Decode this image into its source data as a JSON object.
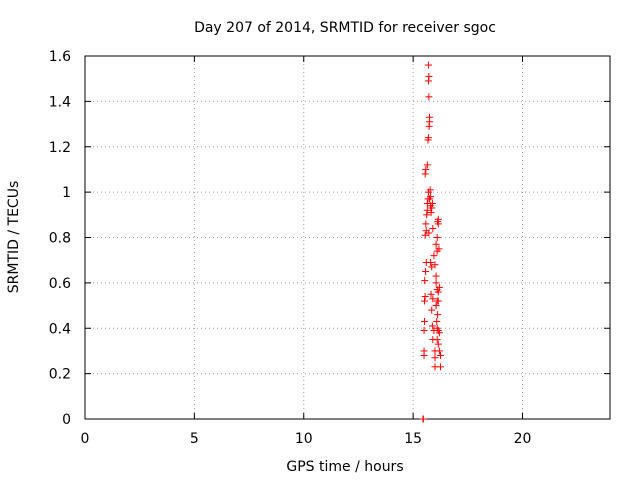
{
  "chart_data": {
    "type": "scatter",
    "title": "Day 207 of 2014, SRMTID for receiver sgoc",
    "xlabel": "GPS time / hours",
    "ylabel": "SRMTID / TECUs",
    "xlim": [
      0,
      24
    ],
    "ylim": [
      0,
      1.6
    ],
    "xticks": [
      "0",
      "5",
      "10",
      "15",
      "20"
    ],
    "xtick_values": [
      0,
      5,
      10,
      15,
      20
    ],
    "yticks": [
      "0",
      "0.2",
      "0.4",
      "0.6",
      "0.8",
      "1",
      "1.2",
      "1.4",
      "1.6"
    ],
    "ytick_values": [
      0,
      0.2,
      0.4,
      0.6,
      0.8,
      1.0,
      1.2,
      1.4,
      1.6
    ],
    "grid": true,
    "marker": "plus",
    "color": "#ff0000",
    "series": [
      {
        "points": [
          [
            15.45,
            0.0
          ],
          [
            15.47,
            0.0
          ],
          [
            15.5,
            0.28
          ],
          [
            15.5,
            0.3
          ],
          [
            15.5,
            0.39
          ],
          [
            15.52,
            0.43
          ],
          [
            15.52,
            0.52
          ],
          [
            15.55,
            0.54
          ],
          [
            15.53,
            0.61
          ],
          [
            15.57,
            0.65
          ],
          [
            15.6,
            0.69
          ],
          [
            15.55,
            0.81
          ],
          [
            15.6,
            0.83
          ],
          [
            15.58,
            0.86
          ],
          [
            15.62,
            0.9
          ],
          [
            15.65,
            0.92
          ],
          [
            15.65,
            0.95
          ],
          [
            15.68,
            0.97
          ],
          [
            15.7,
            1.0
          ],
          [
            15.55,
            1.08
          ],
          [
            15.58,
            1.1
          ],
          [
            15.65,
            1.12
          ],
          [
            15.68,
            1.23
          ],
          [
            15.7,
            1.24
          ],
          [
            15.73,
            1.29
          ],
          [
            15.75,
            1.31
          ],
          [
            15.75,
            1.33
          ],
          [
            15.72,
            1.42
          ],
          [
            15.7,
            1.49
          ],
          [
            15.72,
            1.51
          ],
          [
            15.7,
            1.56
          ],
          [
            15.78,
            1.01
          ],
          [
            15.8,
            0.98
          ],
          [
            15.8,
            0.94
          ],
          [
            15.82,
            0.91
          ],
          [
            15.85,
            0.93
          ],
          [
            15.88,
            0.95
          ],
          [
            15.8,
            0.69
          ],
          [
            15.85,
            0.67
          ],
          [
            15.82,
            0.55
          ],
          [
            15.9,
            0.53
          ],
          [
            15.85,
            0.48
          ],
          [
            15.88,
            0.41
          ],
          [
            15.95,
            0.39
          ],
          [
            15.9,
            0.35
          ],
          [
            16.0,
            0.3
          ],
          [
            16.0,
            0.27
          ],
          [
            16.0,
            0.23
          ],
          [
            16.05,
            0.77
          ],
          [
            16.1,
            0.74
          ],
          [
            16.1,
            0.8
          ],
          [
            16.12,
            0.87
          ],
          [
            16.15,
            0.88
          ],
          [
            16.15,
            0.86
          ],
          [
            16.18,
            0.75
          ],
          [
            16.05,
            0.63
          ],
          [
            16.1,
            0.57
          ],
          [
            16.15,
            0.56
          ],
          [
            16.1,
            0.52
          ],
          [
            16.15,
            0.52
          ],
          [
            16.2,
            0.58
          ],
          [
            16.12,
            0.46
          ],
          [
            16.08,
            0.43
          ],
          [
            16.1,
            0.4
          ],
          [
            16.15,
            0.39
          ],
          [
            16.2,
            0.38
          ],
          [
            16.1,
            0.35
          ],
          [
            16.15,
            0.33
          ],
          [
            16.2,
            0.3
          ],
          [
            16.25,
            0.28
          ],
          [
            16.25,
            0.23
          ],
          [
            16.05,
            0.5
          ],
          [
            16.05,
            0.6
          ],
          [
            16.0,
            0.68
          ],
          [
            15.95,
            0.72
          ],
          [
            15.9,
            0.84
          ],
          [
            15.75,
            0.97
          ],
          [
            15.72,
            0.82
          ]
        ]
      }
    ]
  }
}
